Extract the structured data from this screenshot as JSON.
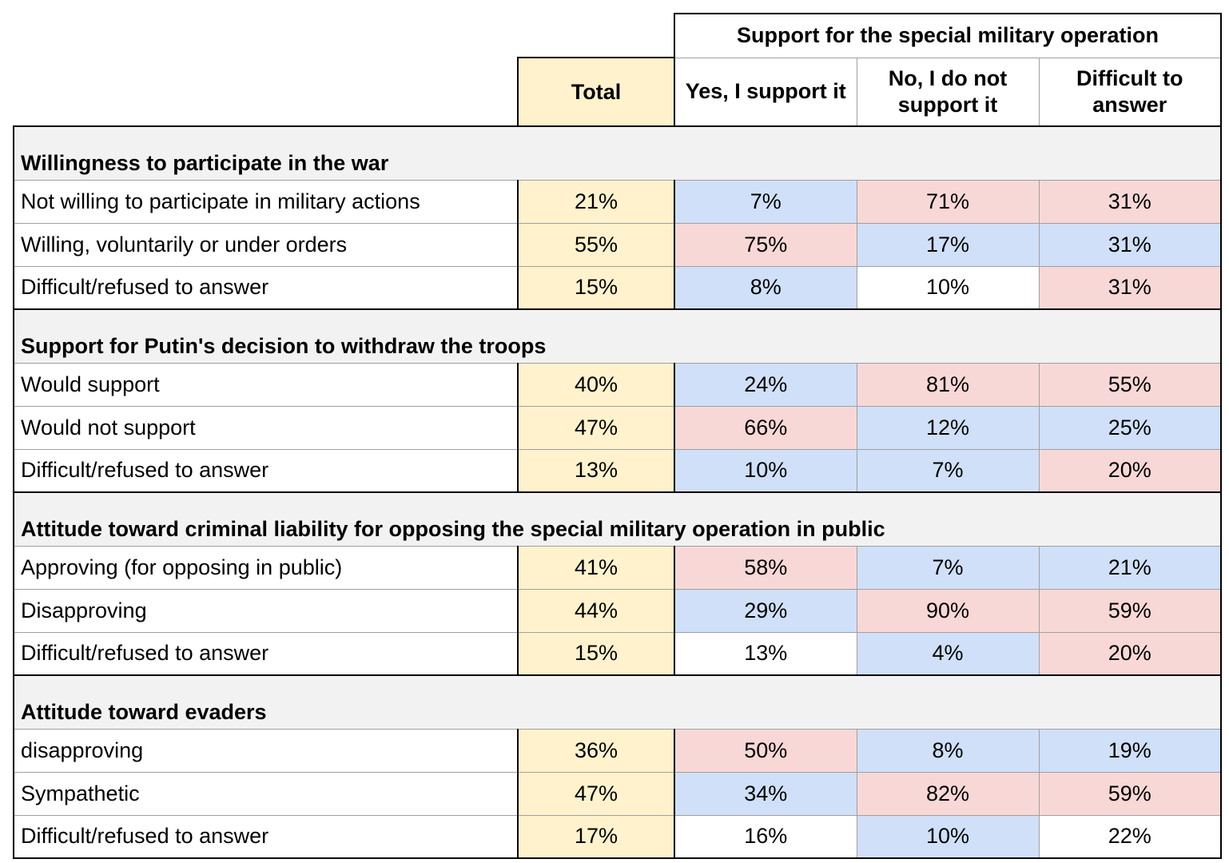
{
  "chart_data": {
    "type": "table",
    "super_header": "Support for the special military operation",
    "columns": [
      "Total",
      "Yes, I support it",
      "No, I do not support it",
      "Difficult to answer"
    ],
    "colors": {
      "total": "#fff2cc",
      "high": "#f8d8d6",
      "low": "#cfe0f8",
      "neutral": "#ffffff",
      "section": "#f2f2f2"
    },
    "sections": [
      {
        "title": "Willingness to participate in the war",
        "rows": [
          {
            "label": "Not willing to participate in military actions",
            "values": [
              "21%",
              "7%",
              "71%",
              "31%"
            ],
            "shading": [
              "blue",
              "red",
              "red"
            ]
          },
          {
            "label": "Willing, voluntarily or under orders",
            "values": [
              "55%",
              "75%",
              "17%",
              "31%"
            ],
            "shading": [
              "red",
              "blue",
              "blue"
            ]
          },
          {
            "label": "Difficult/refused to answer",
            "values": [
              "15%",
              "8%",
              "10%",
              "31%"
            ],
            "shading": [
              "blue",
              "white",
              "red"
            ]
          }
        ]
      },
      {
        "title": "Support for Putin's decision to withdraw the troops",
        "rows": [
          {
            "label": "Would support",
            "values": [
              "40%",
              "24%",
              "81%",
              "55%"
            ],
            "shading": [
              "blue",
              "red",
              "red"
            ]
          },
          {
            "label": "Would not support",
            "values": [
              "47%",
              "66%",
              "12%",
              "25%"
            ],
            "shading": [
              "red",
              "blue",
              "blue"
            ]
          },
          {
            "label": "Difficult/refused to answer",
            "values": [
              "13%",
              "10%",
              "7%",
              "20%"
            ],
            "shading": [
              "blue",
              "blue",
              "red"
            ]
          }
        ]
      },
      {
        "title": "Attitude toward criminal liability for opposing the special military operation in public",
        "rows": [
          {
            "label": "Approving (for opposing in public)",
            "values": [
              "41%",
              "58%",
              "7%",
              "21%"
            ],
            "shading": [
              "red",
              "blue",
              "blue"
            ]
          },
          {
            "label": "Disapproving",
            "values": [
              "44%",
              "29%",
              "90%",
              "59%"
            ],
            "shading": [
              "blue",
              "red",
              "red"
            ]
          },
          {
            "label": "Difficult/refused to answer",
            "values": [
              "15%",
              "13%",
              "4%",
              "20%"
            ],
            "shading": [
              "white",
              "blue",
              "red"
            ]
          }
        ]
      },
      {
        "title": "Attitude toward evaders",
        "rows": [
          {
            "label": "disapproving",
            "values": [
              "36%",
              "50%",
              "8%",
              "19%"
            ],
            "shading": [
              "red",
              "blue",
              "blue"
            ]
          },
          {
            "label": "Sympathetic",
            "values": [
              "47%",
              "34%",
              "82%",
              "59%"
            ],
            "shading": [
              "blue",
              "red",
              "red"
            ]
          },
          {
            "label": "Difficult/refused to answer",
            "values": [
              "17%",
              "16%",
              "10%",
              "22%"
            ],
            "shading": [
              "white",
              "blue",
              "white"
            ]
          }
        ]
      }
    ]
  }
}
